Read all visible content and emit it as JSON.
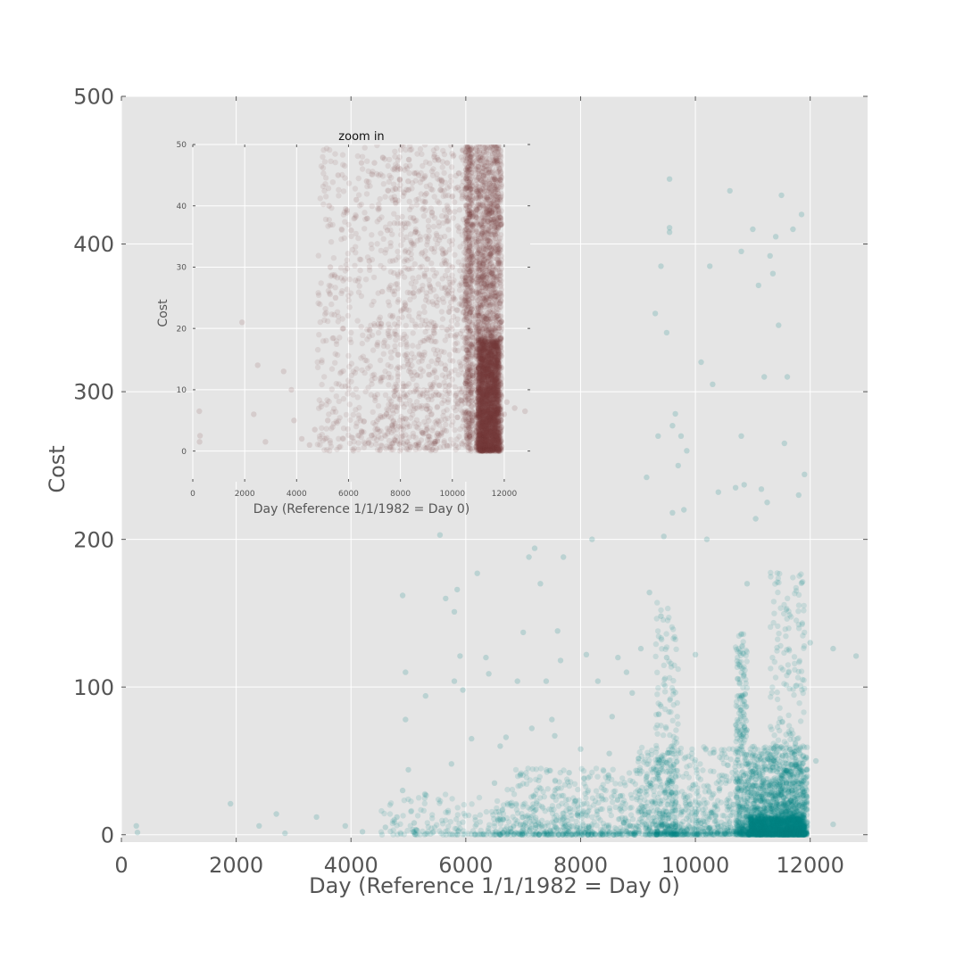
{
  "chart_data": [
    {
      "type": "scatter",
      "xlabel": "Day (Reference 1/1/1982 = Day 0)",
      "ylabel": "Cost",
      "xlim": [
        0,
        13000
      ],
      "ylim": [
        -5,
        500
      ],
      "xticks": [
        0,
        2000,
        4000,
        6000,
        8000,
        10000,
        12000
      ],
      "yticks": [
        0,
        100,
        200,
        300,
        400,
        500
      ],
      "xtick_labels": [
        "0",
        "2000",
        "4000",
        "6000",
        "8000",
        "10000",
        "12000"
      ],
      "ytick_labels": [
        "0",
        "100",
        "200",
        "300",
        "400",
        "500"
      ],
      "grid": true,
      "color": "#008080",
      "series": [
        {
          "points": [
            [
              280,
              1.5
            ],
            [
              260,
              6
            ],
            [
              1900,
              21
            ],
            [
              2400,
              6
            ],
            [
              2700,
              14
            ],
            [
              2850,
              1
            ],
            [
              3400,
              12
            ],
            [
              3900,
              6
            ],
            [
              4200,
              2
            ],
            [
              4600,
              5
            ],
            [
              4800,
              12
            ],
            [
              4900,
              30
            ],
            [
              4950,
              78
            ],
            [
              4950,
              110
            ],
            [
              4900,
              162
            ],
            [
              5000,
              44
            ],
            [
              5100,
              8
            ],
            [
              5150,
              3
            ],
            [
              5300,
              94
            ],
            [
              5550,
              203
            ],
            [
              5650,
              160
            ],
            [
              5750,
              48
            ],
            [
              5800,
              104
            ],
            [
              5800,
              151
            ],
            [
              5850,
              166
            ],
            [
              5900,
              121
            ],
            [
              5950,
              98
            ],
            [
              6100,
              65
            ],
            [
              6200,
              177
            ],
            [
              6350,
              120
            ],
            [
              6400,
              109
            ],
            [
              6500,
              35
            ],
            [
              6600,
              60
            ],
            [
              6700,
              66
            ],
            [
              6900,
              104
            ],
            [
              7000,
              137
            ],
            [
              7100,
              188
            ],
            [
              7150,
              72
            ],
            [
              7200,
              194
            ],
            [
              7300,
              170
            ],
            [
              7400,
              104
            ],
            [
              7500,
              78
            ],
            [
              7550,
              67
            ],
            [
              7600,
              138
            ],
            [
              7650,
              118
            ],
            [
              7700,
              188
            ],
            [
              7800,
              42
            ],
            [
              8000,
              58
            ],
            [
              8100,
              122
            ],
            [
              8200,
              200
            ],
            [
              8300,
              104
            ],
            [
              8500,
              55
            ],
            [
              8550,
              80
            ],
            [
              8650,
              120
            ],
            [
              8800,
              110
            ],
            [
              8900,
              96
            ],
            [
              9050,
              126
            ],
            [
              9150,
              242
            ],
            [
              9200,
              164
            ],
            [
              9300,
              353
            ],
            [
              9350,
              270
            ],
            [
              9400,
              385
            ],
            [
              9400,
              148
            ],
            [
              9450,
              202
            ],
            [
              9500,
              340
            ],
            [
              9500,
              120
            ],
            [
              9550,
              411
            ],
            [
              9550,
              408
            ],
            [
              9550,
              444
            ],
            [
              9600,
              277
            ],
            [
              9600,
              218
            ],
            [
              9650,
              285
            ],
            [
              9700,
              250
            ],
            [
              9750,
              270
            ],
            [
              9800,
              220
            ],
            [
              9850,
              260
            ],
            [
              10000,
              122
            ],
            [
              10100,
              320
            ],
            [
              10200,
              200
            ],
            [
              10250,
              385
            ],
            [
              10300,
              305
            ],
            [
              10400,
              232
            ],
            [
              10600,
              436
            ],
            [
              10700,
              235
            ],
            [
              10800,
              395
            ],
            [
              10800,
              270
            ],
            [
              10850,
              237
            ],
            [
              10900,
              170
            ],
            [
              11000,
              410
            ],
            [
              11050,
              214
            ],
            [
              11100,
              372
            ],
            [
              11150,
              234
            ],
            [
              11200,
              310
            ],
            [
              11250,
              225
            ],
            [
              11300,
              392
            ],
            [
              11350,
              380
            ],
            [
              11400,
              405
            ],
            [
              11450,
              345
            ],
            [
              11500,
              433
            ],
            [
              11550,
              265
            ],
            [
              11600,
              310
            ],
            [
              11700,
              410
            ],
            [
              11800,
              230
            ],
            [
              11850,
              420
            ],
            [
              11900,
              244
            ],
            [
              12000,
              130
            ],
            [
              12100,
              50
            ],
            [
              12400,
              126
            ],
            [
              12400,
              7
            ],
            [
              12800,
              121
            ]
          ]
        }
      ]
    },
    {
      "type": "scatter",
      "title": "zoom in",
      "xlabel": "Day (Reference 1/1/1982 = Day 0)",
      "ylabel": "Cost",
      "xlim": [
        0,
        13000
      ],
      "ylim": [
        -5,
        50
      ],
      "xticks": [
        0,
        2000,
        4000,
        6000,
        8000,
        10000,
        12000
      ],
      "yticks": [
        0,
        10,
        20,
        30,
        40,
        50
      ],
      "xtick_labels": [
        "0",
        "2000",
        "4000",
        "6000",
        "8000",
        "10000",
        "12000"
      ],
      "ytick_labels": [
        "0",
        "10",
        "20",
        "30",
        "40",
        "50"
      ],
      "grid": true,
      "color": "#7a3a3a",
      "series": [
        {
          "points": [
            [
              260,
              1.5
            ],
            [
              280,
              2.5
            ],
            [
              250,
              6.5
            ],
            [
              1900,
              21
            ],
            [
              2350,
              6
            ],
            [
              2500,
              14
            ],
            [
              2800,
              1.5
            ],
            [
              3500,
              13
            ],
            [
              3800,
              10
            ],
            [
              3900,
              5
            ],
            [
              4200,
              2
            ],
            [
              4500,
              1
            ],
            [
              4700,
              3.5
            ],
            [
              5100,
              2
            ],
            [
              5200,
              5
            ],
            [
              5250,
              40
            ],
            [
              5300,
              30
            ],
            [
              5500,
              25
            ],
            [
              5600,
              45
            ],
            [
              5800,
              20
            ],
            [
              6100,
              36
            ],
            [
              6300,
              41
            ],
            [
              6500,
              47
            ],
            [
              6700,
              44
            ],
            [
              6800,
              31
            ],
            [
              7000,
              47
            ],
            [
              7300,
              26
            ],
            [
              7500,
              36
            ],
            [
              7800,
              41
            ],
            [
              8000,
              46
            ],
            [
              8300,
              44
            ],
            [
              8500,
              38
            ],
            [
              8700,
              45
            ],
            [
              9000,
              42
            ],
            [
              9200,
              33
            ],
            [
              9300,
              48
            ],
            [
              9600,
              44
            ],
            [
              9800,
              47
            ],
            [
              9900,
              39
            ],
            [
              10000,
              30
            ],
            [
              10200,
              43
            ],
            [
              10400,
              49
            ],
            [
              11400,
              47
            ],
            [
              11600,
              44
            ],
            [
              11900,
              37
            ],
            [
              12000,
              6
            ],
            [
              12100,
              8
            ],
            [
              12400,
              7
            ],
            [
              12800,
              6.5
            ]
          ]
        }
      ]
    }
  ]
}
